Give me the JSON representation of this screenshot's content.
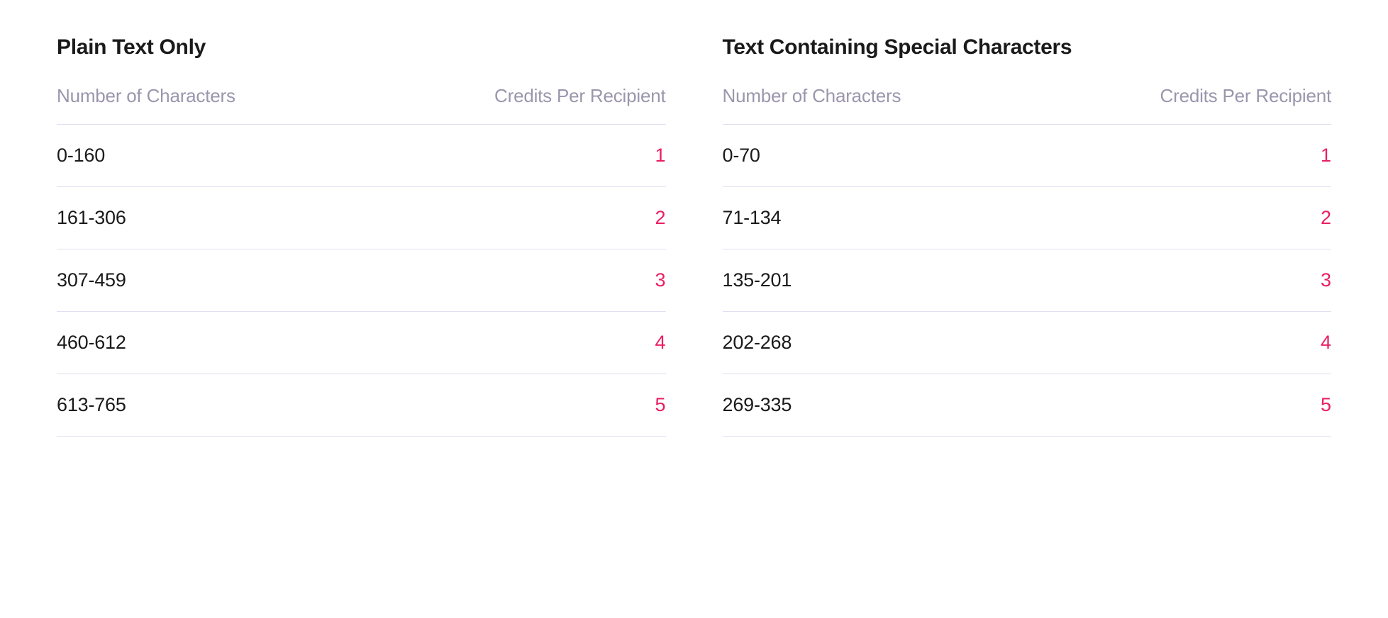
{
  "tables": [
    {
      "title": "Plain Text Only",
      "columns": {
        "left": "Number of Characters",
        "right": "Credits Per Recipient"
      },
      "rows": [
        {
          "range": "0-160",
          "credits": "1"
        },
        {
          "range": "161-306",
          "credits": "2"
        },
        {
          "range": "307-459",
          "credits": "3"
        },
        {
          "range": "460-612",
          "credits": "4"
        },
        {
          "range": "613-765",
          "credits": "5"
        }
      ]
    },
    {
      "title": "Text Containing Special Characters",
      "columns": {
        "left": "Number of Characters",
        "right": "Credits Per Recipient"
      },
      "rows": [
        {
          "range": "0-70",
          "credits": "1"
        },
        {
          "range": "71-134",
          "credits": "2"
        },
        {
          "range": "135-201",
          "credits": "3"
        },
        {
          "range": "202-268",
          "credits": "4"
        },
        {
          "range": "269-335",
          "credits": "5"
        }
      ]
    }
  ],
  "colors": {
    "title": "#1a1a1a",
    "header_label": "#9b96ac",
    "range_text": "#1a1a1a",
    "credits_text": "#e91e63",
    "border": "#e2dff0",
    "background": "#ffffff"
  },
  "typography": {
    "title_fontsize": 30,
    "title_weight": 700,
    "header_fontsize": 26,
    "cell_fontsize": 27
  }
}
